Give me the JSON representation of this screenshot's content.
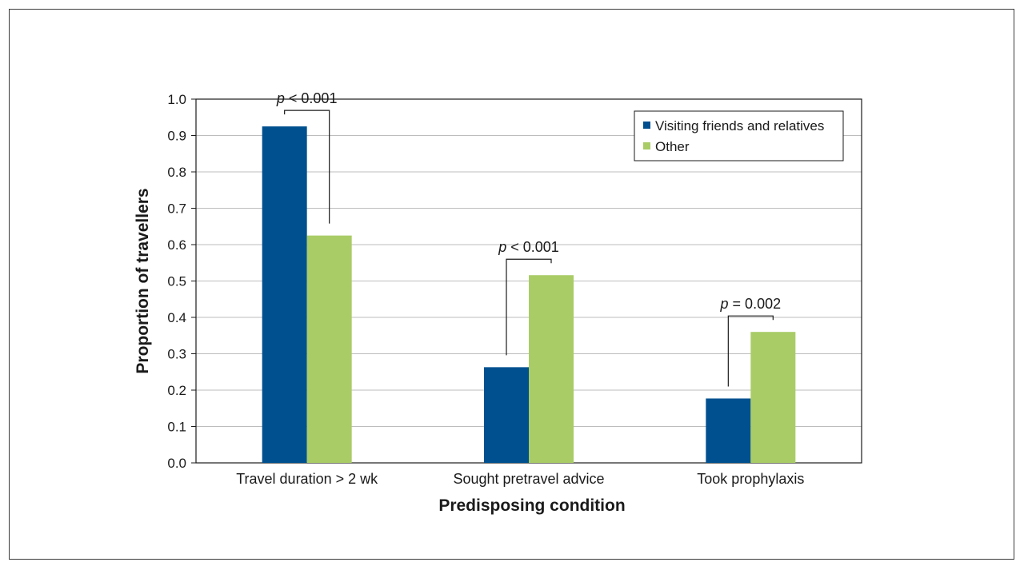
{
  "chart_data": {
    "type": "bar",
    "xlabel": "Predisposing condition",
    "ylabel": "Proportion of travellers",
    "ylim": [
      0,
      1.0
    ],
    "yticks": [
      "0.0",
      "0.1",
      "0.2",
      "0.3",
      "0.4",
      "0.5",
      "0.6",
      "0.7",
      "0.8",
      "0.9",
      "1.0"
    ],
    "grid": true,
    "legend_position": "top-right",
    "categories": [
      "Travel duration > 2 wk",
      "Sought pretravel advice",
      "Took prophylaxis"
    ],
    "series": [
      {
        "name": "Visiting friends and relatives",
        "color": "#00508f",
        "values": [
          0.925,
          0.263,
          0.177
        ]
      },
      {
        "name": "Other",
        "color": "#a9cc66",
        "values": [
          0.625,
          0.516,
          0.36
        ]
      }
    ],
    "annotations": [
      {
        "category_index": 0,
        "p_symbol": "p",
        "relation": "< 0.001"
      },
      {
        "category_index": 1,
        "p_symbol": "p",
        "relation": "< 0.001"
      },
      {
        "category_index": 2,
        "p_symbol": "p",
        "relation": "= 0.002"
      }
    ]
  }
}
